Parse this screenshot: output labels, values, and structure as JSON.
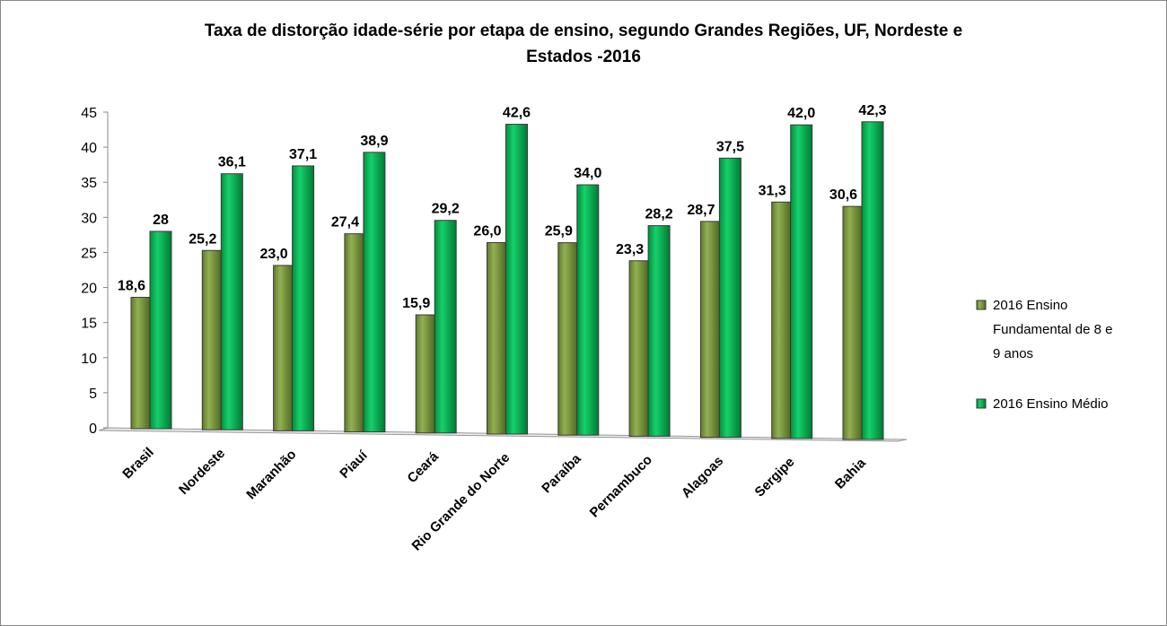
{
  "chart_data": {
    "type": "bar",
    "title_lines": [
      "Taxa de distorção idade-série por etapa de ensino, segundo Grandes Regiões, UF, Nordeste e",
      "Estados -2016"
    ],
    "categories": [
      "Brasil",
      "Nordeste",
      "Maranhão",
      "Piauí",
      "Ceará",
      "Rio Grande do Norte",
      "Paraíba",
      "Pernambuco",
      "Alagoas",
      "Sergipe",
      "Bahia"
    ],
    "series": [
      {
        "name": "2016 Ensino Fundamental de 8 e 9 anos",
        "legend_lines": [
          "2016 Ensino",
          "Fundamental de 8 e",
          "9 anos"
        ],
        "color": "#77933C",
        "values": [
          18.6,
          25.2,
          23.0,
          27.4,
          15.9,
          26.0,
          25.9,
          23.3,
          28.7,
          31.3,
          30.6
        ],
        "labels": [
          "18,6",
          "25,2",
          "23,0",
          "27,4",
          "15,9",
          "26,0",
          "25,9",
          "23,3",
          "28,7",
          "31,3",
          "30,6"
        ]
      },
      {
        "name": "2016 Ensino Médio",
        "legend_lines": [
          "2016 Ensino Médio"
        ],
        "color": "#00B050",
        "values": [
          28,
          36.1,
          37.1,
          38.9,
          29.2,
          42.6,
          34.0,
          28.2,
          37.5,
          42.0,
          42.3
        ],
        "labels": [
          "28",
          "36,1",
          "37,1",
          "38,9",
          "29,2",
          "42,6",
          "34,0",
          "28,2",
          "37,5",
          "42,0",
          "42,3"
        ]
      }
    ],
    "yticks": [
      "0",
      "5",
      "10",
      "15",
      "20",
      "25",
      "30",
      "35",
      "40",
      "45"
    ],
    "ylim": [
      0,
      45
    ],
    "xlabel": "",
    "ylabel": "",
    "grid": false,
    "legend_position": "right"
  }
}
